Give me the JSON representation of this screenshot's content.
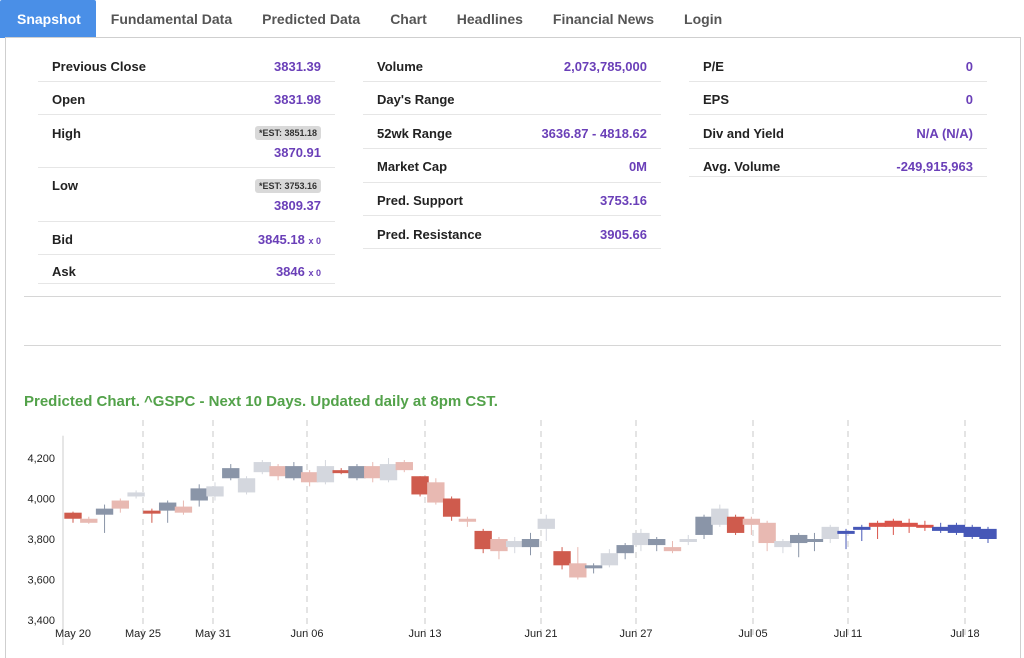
{
  "tabs": [
    "Snapshot",
    "Fundamental Data",
    "Predicted Data",
    "Chart",
    "Headlines",
    "Financial News",
    "Login"
  ],
  "col1": {
    "previous_close": {
      "label": "Previous Close",
      "value": "3831.39"
    },
    "open": {
      "label": "Open",
      "value": "3831.98"
    },
    "high": {
      "label": "High",
      "est": "*EST: 3851.18",
      "value": "3870.91"
    },
    "low": {
      "label": "Low",
      "est": "*EST: 3753.16",
      "value": "3809.37"
    },
    "bid": {
      "label": "Bid",
      "value": "3845.18",
      "suffix": "x 0"
    },
    "ask": {
      "label": "Ask",
      "value": "3846",
      "suffix": "x 0"
    }
  },
  "col2": {
    "volume": {
      "label": "Volume",
      "value": "2,073,785,000"
    },
    "days_range": {
      "label": "Day's Range",
      "value": ""
    },
    "wk52_range": {
      "label": "52wk Range",
      "value": "3636.87 - 4818.62"
    },
    "market_cap": {
      "label": "Market Cap",
      "value": "0M"
    },
    "pred_support": {
      "label": "Pred. Support",
      "value": "3753.16"
    },
    "pred_resistance": {
      "label": "Pred. Resistance",
      "value": "3905.66"
    }
  },
  "col3": {
    "pe": {
      "label": "P/E",
      "value": "0"
    },
    "eps": {
      "label": "EPS",
      "value": "0"
    },
    "div_yield": {
      "label": "Div and Yield",
      "value": "N/A (N/A)"
    },
    "avg_volume": {
      "label": "Avg. Volume",
      "value": "-249,915,963"
    }
  },
  "chart_title": "Predicted Chart. ^GSPC - Next 10 Days. Updated daily at 8pm CST.",
  "chart_data": {
    "type": "candlestick",
    "title": "Predicted Chart. ^GSPC - Next 10 Days. Updated daily at 8pm CST.",
    "ylim": [
      3400,
      4300
    ],
    "yticks": [
      "3,400",
      "3,600",
      "3,800",
      "4,000",
      "4,200"
    ],
    "ytick_values": [
      3400,
      3600,
      3800,
      4000,
      4200
    ],
    "xtick_labels": [
      "May 20",
      "May 25",
      "May 31",
      "Jun 06",
      "Jun 13",
      "Jun 21",
      "Jun 27",
      "Jul 05",
      "Jul 11",
      "Jul 18"
    ],
    "colors": {
      "hist_up": "#8a95a8",
      "hist_down": "#cf5b4d",
      "hist_up_faint": "#d4d7de",
      "hist_down_faint": "#e8b9b2",
      "pred_up": "#4657b7",
      "pred_down": "#d9544a"
    },
    "candles": [
      {
        "open": 3930,
        "close": 3900,
        "high": 3935,
        "low": 3880,
        "style": "hist_down"
      },
      {
        "open": 3900,
        "close": 3880,
        "high": 3910,
        "low": 3875,
        "style": "hist_down_faint"
      },
      {
        "open": 3920,
        "close": 3950,
        "high": 3970,
        "low": 3830,
        "style": "hist_up"
      },
      {
        "open": 3990,
        "close": 3950,
        "high": 4000,
        "low": 3930,
        "style": "hist_down_faint"
      },
      {
        "open": 4010,
        "close": 4030,
        "high": 4040,
        "low": 4000,
        "style": "hist_up_faint"
      },
      {
        "open": 3940,
        "close": 3935,
        "high": 3950,
        "low": 3880,
        "style": "hist_down"
      },
      {
        "open": 3940,
        "close": 3980,
        "high": 3990,
        "low": 3880,
        "style": "hist_up"
      },
      {
        "open": 3960,
        "close": 3930,
        "high": 3990,
        "low": 3920,
        "style": "hist_down_faint"
      },
      {
        "open": 3990,
        "close": 4050,
        "high": 4070,
        "low": 3960,
        "style": "hist_up"
      },
      {
        "open": 4010,
        "close": 4060,
        "high": 4080,
        "low": 3990,
        "style": "hist_up_faint"
      },
      {
        "open": 4100,
        "close": 4150,
        "high": 4170,
        "low": 4090,
        "style": "hist_up"
      },
      {
        "open": 4030,
        "close": 4100,
        "high": 4110,
        "low": 4020,
        "style": "hist_up_faint"
      },
      {
        "open": 4130,
        "close": 4180,
        "high": 4190,
        "low": 4120,
        "style": "hist_up_faint"
      },
      {
        "open": 4160,
        "close": 4110,
        "high": 4170,
        "low": 4090,
        "style": "hist_down_faint"
      },
      {
        "open": 4100,
        "close": 4160,
        "high": 4180,
        "low": 4090,
        "style": "hist_up"
      },
      {
        "open": 4130,
        "close": 4080,
        "high": 4140,
        "low": 4060,
        "style": "hist_down_faint"
      },
      {
        "open": 4080,
        "close": 4160,
        "high": 4190,
        "low": 4070,
        "style": "hist_up_faint"
      },
      {
        "open": 4140,
        "close": 4130,
        "high": 4150,
        "low": 4120,
        "style": "hist_down"
      },
      {
        "open": 4100,
        "close": 4160,
        "high": 4170,
        "low": 4090,
        "style": "hist_up"
      },
      {
        "open": 4160,
        "close": 4100,
        "high": 4180,
        "low": 4080,
        "style": "hist_down_faint"
      },
      {
        "open": 4090,
        "close": 4170,
        "high": 4200,
        "low": 4080,
        "style": "hist_up_faint"
      },
      {
        "open": 4180,
        "close": 4140,
        "high": 4190,
        "low": 4130,
        "style": "hist_down_faint"
      },
      {
        "open": 4110,
        "close": 4020,
        "high": 4110,
        "low": 4010,
        "style": "hist_down"
      },
      {
        "open": 4080,
        "close": 3980,
        "high": 4100,
        "low": 3970,
        "style": "hist_down_faint"
      },
      {
        "open": 4000,
        "close": 3910,
        "high": 4010,
        "low": 3890,
        "style": "hist_down"
      },
      {
        "open": 3900,
        "close": 3890,
        "high": 3910,
        "low": 3860,
        "style": "hist_down_faint"
      },
      {
        "open": 3840,
        "close": 3750,
        "high": 3850,
        "low": 3730,
        "style": "hist_down"
      },
      {
        "open": 3800,
        "close": 3740,
        "high": 3810,
        "low": 3700,
        "style": "hist_down_faint"
      },
      {
        "open": 3760,
        "close": 3790,
        "high": 3810,
        "low": 3730,
        "style": "hist_up_faint"
      },
      {
        "open": 3760,
        "close": 3800,
        "high": 3830,
        "low": 3720,
        "style": "hist_up"
      },
      {
        "open": 3850,
        "close": 3900,
        "high": 3920,
        "low": 3790,
        "style": "hist_up_faint"
      },
      {
        "open": 3740,
        "close": 3670,
        "high": 3760,
        "low": 3650,
        "style": "hist_down"
      },
      {
        "open": 3680,
        "close": 3610,
        "high": 3760,
        "low": 3600,
        "style": "hist_down_faint"
      },
      {
        "open": 3660,
        "close": 3670,
        "high": 3680,
        "low": 3630,
        "style": "hist_up"
      },
      {
        "open": 3670,
        "close": 3730,
        "high": 3750,
        "low": 3660,
        "style": "hist_up_faint"
      },
      {
        "open": 3730,
        "close": 3770,
        "high": 3780,
        "low": 3700,
        "style": "hist_up"
      },
      {
        "open": 3770,
        "close": 3830,
        "high": 3850,
        "low": 3740,
        "style": "hist_up_faint"
      },
      {
        "open": 3770,
        "close": 3800,
        "high": 3810,
        "low": 3740,
        "style": "hist_up"
      },
      {
        "open": 3760,
        "close": 3740,
        "high": 3790,
        "low": 3730,
        "style": "hist_down_faint"
      },
      {
        "open": 3790,
        "close": 3800,
        "high": 3820,
        "low": 3770,
        "style": "hist_up_faint"
      },
      {
        "open": 3820,
        "close": 3910,
        "high": 3920,
        "low": 3800,
        "style": "hist_up"
      },
      {
        "open": 3870,
        "close": 3950,
        "high": 3970,
        "low": 3860,
        "style": "hist_up_faint"
      },
      {
        "open": 3910,
        "close": 3830,
        "high": 3920,
        "low": 3820,
        "style": "hist_down"
      },
      {
        "open": 3870,
        "close": 3900,
        "high": 3910,
        "low": 3820,
        "style": "hist_down_faint"
      },
      {
        "open": 3880,
        "close": 3780,
        "high": 3890,
        "low": 3740,
        "style": "hist_down_faint"
      },
      {
        "open": 3790,
        "close": 3760,
        "high": 3800,
        "low": 3730,
        "style": "hist_up_faint"
      },
      {
        "open": 3780,
        "close": 3820,
        "high": 3830,
        "low": 3710,
        "style": "hist_up"
      },
      {
        "open": 3790,
        "close": 3800,
        "high": 3830,
        "low": 3740,
        "style": "hist_up"
      },
      {
        "open": 3800,
        "close": 3860,
        "high": 3870,
        "low": 3780,
        "style": "hist_up_faint"
      },
      {
        "open": 3830,
        "close": 3840,
        "high": 3850,
        "low": 3750,
        "style": "pred_up"
      },
      {
        "open": 3860,
        "close": 3860,
        "high": 3870,
        "low": 3790,
        "style": "pred_up"
      },
      {
        "open": 3860,
        "close": 3880,
        "high": 3890,
        "low": 3800,
        "style": "pred_down"
      },
      {
        "open": 3860,
        "close": 3890,
        "high": 3900,
        "low": 3820,
        "style": "pred_down"
      },
      {
        "open": 3860,
        "close": 3880,
        "high": 3900,
        "low": 3830,
        "style": "pred_down"
      },
      {
        "open": 3860,
        "close": 3870,
        "high": 3890,
        "low": 3840,
        "style": "pred_down"
      },
      {
        "open": 3840,
        "close": 3860,
        "high": 3880,
        "low": 3830,
        "style": "pred_up"
      },
      {
        "open": 3830,
        "close": 3870,
        "high": 3880,
        "low": 3820,
        "style": "pred_up"
      },
      {
        "open": 3810,
        "close": 3860,
        "high": 3870,
        "low": 3800,
        "style": "pred_up"
      },
      {
        "open": 3800,
        "close": 3850,
        "high": 3860,
        "low": 3780,
        "style": "pred_up"
      }
    ]
  }
}
